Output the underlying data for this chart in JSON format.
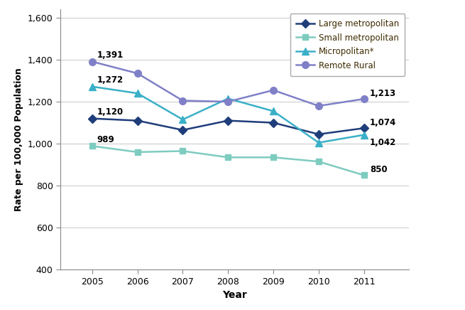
{
  "years": [
    2005,
    2006,
    2007,
    2008,
    2009,
    2010,
    2011
  ],
  "large_metro": [
    1120,
    1110,
    1065,
    1110,
    1100,
    1045,
    1074
  ],
  "small_metro": [
    989,
    960,
    965,
    935,
    935,
    915,
    850
  ],
  "micropolitan": [
    1272,
    1240,
    1115,
    1215,
    1155,
    1005,
    1042
  ],
  "remote_rural": [
    1391,
    1335,
    1205,
    1200,
    1255,
    1180,
    1213
  ],
  "large_metro_color": "#1f3d7a",
  "small_metro_color": "#7eccc0",
  "micropolitan_color": "#3ab0c8",
  "remote_rural_color": "#8080c8",
  "xlabel": "Year",
  "ylabel": "Rate per 100,000 Population",
  "ylim": [
    400,
    1640
  ],
  "yticks": [
    400,
    600,
    800,
    1000,
    1200,
    1400,
    1600
  ],
  "ytick_labels": [
    "400",
    "600",
    "800",
    "1,000",
    "1,200",
    "1,400",
    "1,600"
  ],
  "legend_labels": [
    "Large metropolitan",
    "Small metropolitan",
    "Micropolitan*",
    "Remote Rural"
  ],
  "background_color": "#ffffff",
  "grid_color": "#c8c8c8",
  "annot_2005": [
    "1,120",
    "989",
    "1,272",
    "1,391"
  ],
  "annot_2011": [
    "1,074",
    "850",
    "1,042",
    "1,213"
  ]
}
